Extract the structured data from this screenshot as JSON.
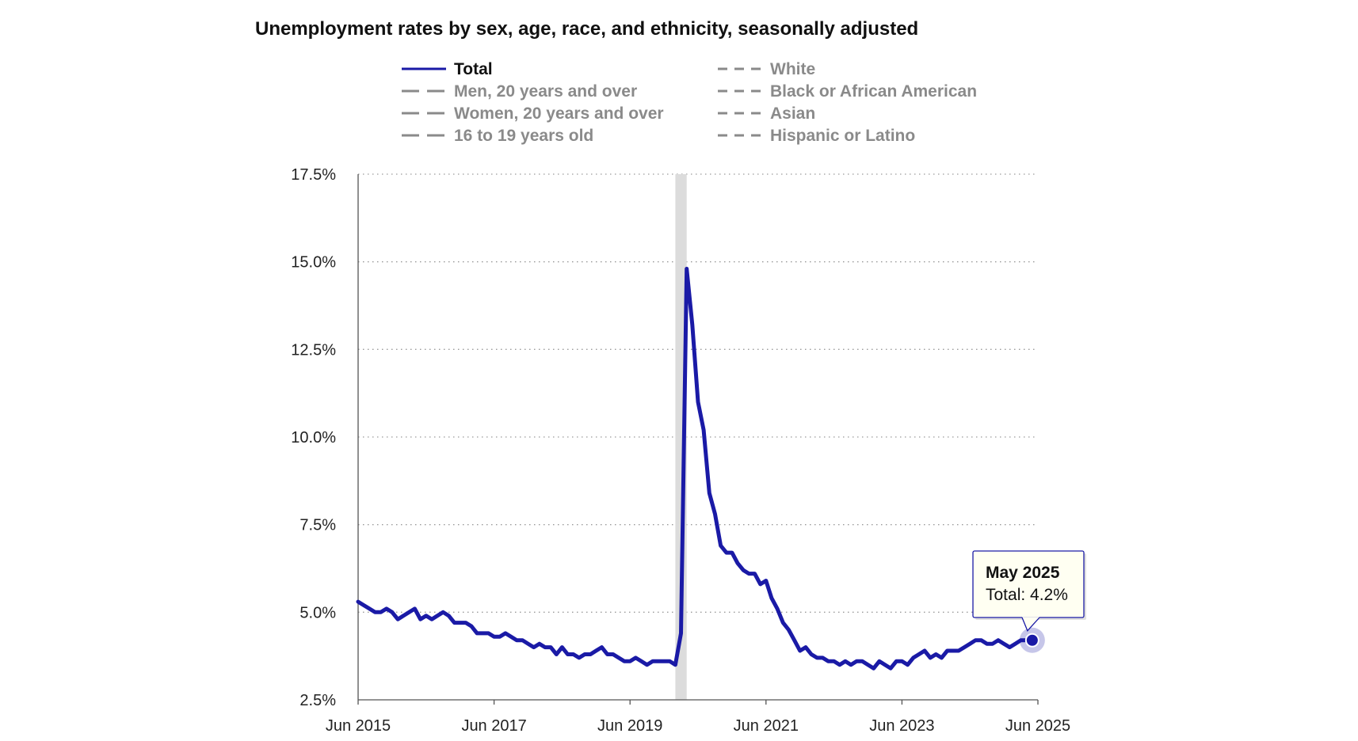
{
  "chart_data": {
    "type": "line",
    "title": "Unemployment rates by sex, age, race, and ethnicity, seasonally adjusted",
    "xlabel": "",
    "ylabel": "",
    "x_ticks": [
      "Jun 2015",
      "Jun 2017",
      "Jun 2019",
      "Jun 2021",
      "Jun 2023",
      "Jun 2025"
    ],
    "y_ticks": [
      "2.5%",
      "5.0%",
      "7.5%",
      "10.0%",
      "12.5%",
      "15.0%",
      "17.5%"
    ],
    "ylim": [
      2.5,
      17.5
    ],
    "xlim": [
      "2015-06",
      "2025-06"
    ],
    "grid": "horizontal dotted",
    "legend_position": "top",
    "legend": [
      {
        "label": "Total",
        "style": "solid",
        "active": true,
        "color": "#1a1aa6"
      },
      {
        "label": "Men, 20 years and over",
        "style": "dashed",
        "active": false,
        "color": "#8a8a8a"
      },
      {
        "label": "Women, 20 years and over",
        "style": "dashed",
        "active": false,
        "color": "#8a8a8a"
      },
      {
        "label": "16 to 19 years old",
        "style": "dashed",
        "active": false,
        "color": "#8a8a8a"
      },
      {
        "label": "White",
        "style": "dashed",
        "active": false,
        "color": "#8a8a8a"
      },
      {
        "label": "Black or African American",
        "style": "dashed",
        "active": false,
        "color": "#8a8a8a"
      },
      {
        "label": "Asian",
        "style": "dashed",
        "active": false,
        "color": "#8a8a8a"
      },
      {
        "label": "Hispanic or Latino",
        "style": "dashed",
        "active": false,
        "color": "#8a8a8a"
      }
    ],
    "recession_shading": {
      "start": "2020-02",
      "end": "2020-04"
    },
    "series": [
      {
        "name": "Total",
        "color": "#1a1aa6",
        "x": [
          "2015-06",
          "2015-07",
          "2015-08",
          "2015-09",
          "2015-10",
          "2015-11",
          "2015-12",
          "2016-01",
          "2016-02",
          "2016-03",
          "2016-04",
          "2016-05",
          "2016-06",
          "2016-07",
          "2016-08",
          "2016-09",
          "2016-10",
          "2016-11",
          "2016-12",
          "2017-01",
          "2017-02",
          "2017-03",
          "2017-04",
          "2017-05",
          "2017-06",
          "2017-07",
          "2017-08",
          "2017-09",
          "2017-10",
          "2017-11",
          "2017-12",
          "2018-01",
          "2018-02",
          "2018-03",
          "2018-04",
          "2018-05",
          "2018-06",
          "2018-07",
          "2018-08",
          "2018-09",
          "2018-10",
          "2018-11",
          "2018-12",
          "2019-01",
          "2019-02",
          "2019-03",
          "2019-04",
          "2019-05",
          "2019-06",
          "2019-07",
          "2019-08",
          "2019-09",
          "2019-10",
          "2019-11",
          "2019-12",
          "2020-01",
          "2020-02",
          "2020-03",
          "2020-04",
          "2020-05",
          "2020-06",
          "2020-07",
          "2020-08",
          "2020-09",
          "2020-10",
          "2020-11",
          "2020-12",
          "2021-01",
          "2021-02",
          "2021-03",
          "2021-04",
          "2021-05",
          "2021-06",
          "2021-07",
          "2021-08",
          "2021-09",
          "2021-10",
          "2021-11",
          "2021-12",
          "2022-01",
          "2022-02",
          "2022-03",
          "2022-04",
          "2022-05",
          "2022-06",
          "2022-07",
          "2022-08",
          "2022-09",
          "2022-10",
          "2022-11",
          "2022-12",
          "2023-01",
          "2023-02",
          "2023-03",
          "2023-04",
          "2023-05",
          "2023-06",
          "2023-07",
          "2023-08",
          "2023-09",
          "2023-10",
          "2023-11",
          "2023-12",
          "2024-01",
          "2024-02",
          "2024-03",
          "2024-04",
          "2024-05",
          "2024-06",
          "2024-07",
          "2024-08",
          "2024-09",
          "2024-10",
          "2024-11",
          "2024-12",
          "2025-01",
          "2025-02",
          "2025-03",
          "2025-04",
          "2025-05"
        ],
        "values": [
          5.3,
          5.2,
          5.1,
          5.0,
          5.0,
          5.1,
          5.0,
          4.8,
          4.9,
          5.0,
          5.1,
          4.8,
          4.9,
          4.8,
          4.9,
          5.0,
          4.9,
          4.7,
          4.7,
          4.7,
          4.6,
          4.4,
          4.4,
          4.4,
          4.3,
          4.3,
          4.4,
          4.3,
          4.2,
          4.2,
          4.1,
          4.0,
          4.1,
          4.0,
          4.0,
          3.8,
          4.0,
          3.8,
          3.8,
          3.7,
          3.8,
          3.8,
          3.9,
          4.0,
          3.8,
          3.8,
          3.7,
          3.6,
          3.6,
          3.7,
          3.6,
          3.5,
          3.6,
          3.6,
          3.6,
          3.6,
          3.5,
          4.4,
          14.8,
          13.2,
          11.0,
          10.2,
          8.4,
          7.8,
          6.9,
          6.7,
          6.7,
          6.4,
          6.2,
          6.1,
          6.1,
          5.8,
          5.9,
          5.4,
          5.1,
          4.7,
          4.5,
          4.2,
          3.9,
          4.0,
          3.8,
          3.7,
          3.7,
          3.6,
          3.6,
          3.5,
          3.6,
          3.5,
          3.6,
          3.6,
          3.5,
          3.4,
          3.6,
          3.5,
          3.4,
          3.6,
          3.6,
          3.5,
          3.7,
          3.8,
          3.9,
          3.7,
          3.8,
          3.7,
          3.9,
          3.9,
          3.9,
          4.0,
          4.1,
          4.2,
          4.2,
          4.1,
          4.1,
          4.2,
          4.1,
          4.0,
          4.1,
          4.2,
          4.2,
          4.2
        ]
      }
    ],
    "tooltip": {
      "title": "May 2025",
      "text": "Total: 4.2%",
      "x": "2025-05",
      "value": 4.2
    }
  }
}
